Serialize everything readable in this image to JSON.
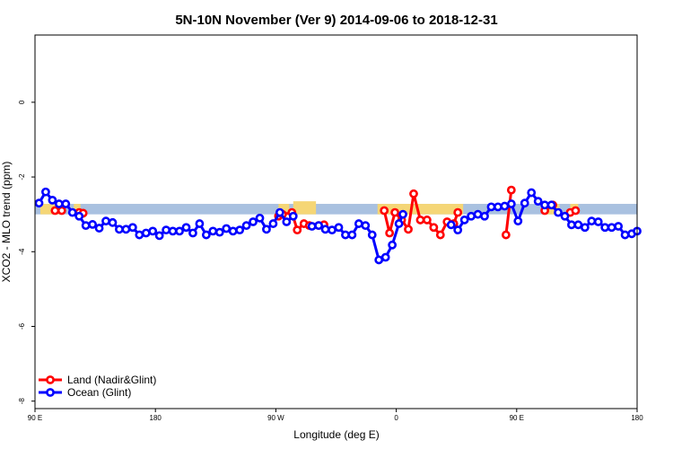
{
  "chart_data": {
    "type": "line",
    "title": "5N-10N November (Ver 9)   2014-09-06 to 2018-12-31",
    "xlabel": "Longitude (deg E)",
    "ylabel": "XCO2 - MLO trend (ppm)",
    "xlim": [
      90,
      540
    ],
    "ylim": [
      -8.2,
      1.8
    ],
    "x_ticks": [
      {
        "value": 90,
        "label": "90 E"
      },
      {
        "value": 180,
        "label": "180"
      },
      {
        "value": 270,
        "label": "90 W"
      },
      {
        "value": 360,
        "label": "0"
      },
      {
        "value": 450,
        "label": "90 E"
      },
      {
        "value": 540,
        "label": "180"
      }
    ],
    "y_ticks": [
      0,
      -2,
      -4,
      -6,
      -8
    ],
    "reference_band": {
      "color": "#a9c1e0",
      "y": [
        -3.0,
        -2.72
      ]
    },
    "highlight_bands": {
      "color": "#f5d676",
      "segments": [
        {
          "x": [
            94,
            109
          ],
          "y": [
            -3.0,
            -2.72
          ]
        },
        {
          "x": [
            119,
            124
          ],
          "y": [
            -3.0,
            -2.72
          ]
        },
        {
          "x": [
            272,
            280
          ],
          "y": [
            -3.0,
            -2.72
          ]
        },
        {
          "x": [
            283,
            300
          ],
          "y": [
            -3.0,
            -2.65
          ]
        },
        {
          "x": [
            346,
            410
          ],
          "y": [
            -3.0,
            -2.72
          ]
        },
        {
          "x": [
            470,
            482
          ],
          "y": [
            -3.0,
            -2.72
          ]
        },
        {
          "x": [
            490,
            496
          ],
          "y": [
            -3.0,
            -2.72
          ]
        }
      ]
    },
    "series": [
      {
        "name": "Land (Nadir&Glint)",
        "color": "#ff0000",
        "segments": [
          [
            [
              105,
              -2.9
            ],
            [
              110,
              -2.9
            ]
          ],
          [
            [
              123,
              -2.95
            ],
            [
              126,
              -2.97
            ]
          ],
          [
            [
              272,
              -3.05
            ],
            [
              275,
              -3.0
            ],
            [
              282,
              -2.95
            ],
            [
              286,
              -3.42
            ],
            [
              291,
              -3.25
            ],
            [
              295,
              -3.3
            ],
            [
              302,
              -3.3
            ],
            [
              306,
              -3.28
            ]
          ],
          [
            [
              351,
              -2.9
            ],
            [
              355,
              -3.5
            ],
            [
              359,
              -2.95
            ],
            [
              364,
              -3.15
            ],
            [
              369,
              -3.4
            ],
            [
              373,
              -2.45
            ],
            [
              378,
              -3.15
            ],
            [
              383,
              -3.15
            ],
            [
              388,
              -3.35
            ],
            [
              393,
              -3.55
            ],
            [
              398,
              -3.2
            ],
            [
              403,
              -3.25
            ],
            [
              406,
              -2.95
            ]
          ],
          [
            [
              442,
              -3.55
            ],
            [
              446,
              -2.35
            ]
          ],
          [
            [
              471,
              -2.9
            ],
            [
              477,
              -2.75
            ]
          ],
          [
            [
              490,
              -2.95
            ],
            [
              494,
              -2.9
            ]
          ]
        ]
      },
      {
        "name": "Ocean (Glint)",
        "color": "#0000ff",
        "segments": [
          [
            [
              93,
              -2.7
            ],
            [
              98,
              -2.4
            ],
            [
              103,
              -2.62
            ],
            [
              108,
              -2.72
            ],
            [
              113,
              -2.72
            ],
            [
              118,
              -2.95
            ],
            [
              123,
              -3.05
            ],
            [
              128,
              -3.3
            ],
            [
              133,
              -3.27
            ],
            [
              138,
              -3.37
            ],
            [
              143,
              -3.18
            ],
            [
              148,
              -3.22
            ],
            [
              153,
              -3.4
            ],
            [
              158,
              -3.4
            ],
            [
              163,
              -3.35
            ],
            [
              168,
              -3.55
            ],
            [
              173,
              -3.5
            ],
            [
              178,
              -3.45
            ],
            [
              183,
              -3.57
            ],
            [
              188,
              -3.42
            ],
            [
              193,
              -3.45
            ],
            [
              198,
              -3.45
            ],
            [
              203,
              -3.35
            ],
            [
              208,
              -3.5
            ],
            [
              213,
              -3.25
            ],
            [
              218,
              -3.55
            ],
            [
              223,
              -3.45
            ],
            [
              228,
              -3.48
            ],
            [
              233,
              -3.38
            ],
            [
              238,
              -3.45
            ],
            [
              243,
              -3.42
            ],
            [
              248,
              -3.3
            ],
            [
              253,
              -3.2
            ],
            [
              258,
              -3.1
            ],
            [
              263,
              -3.4
            ],
            [
              268,
              -3.25
            ],
            [
              273,
              -2.95
            ],
            [
              278,
              -3.2
            ],
            [
              283,
              -3.05
            ]
          ],
          [
            [
              297,
              -3.32
            ],
            [
              302,
              -3.3
            ],
            [
              307,
              -3.4
            ],
            [
              312,
              -3.42
            ],
            [
              317,
              -3.35
            ],
            [
              322,
              -3.55
            ],
            [
              327,
              -3.55
            ],
            [
              332,
              -3.25
            ],
            [
              337,
              -3.3
            ],
            [
              342,
              -3.55
            ],
            [
              347,
              -4.22
            ],
            [
              352,
              -4.15
            ],
            [
              357,
              -3.82
            ],
            [
              362,
              -3.25
            ],
            [
              365,
              -3.0
            ]
          ],
          [
            [
              401,
              -3.28
            ],
            [
              406,
              -3.42
            ],
            [
              411,
              -3.15
            ],
            [
              416,
              -3.05
            ],
            [
              421,
              -3.0
            ],
            [
              426,
              -3.05
            ],
            [
              431,
              -2.8
            ],
            [
              436,
              -2.8
            ],
            [
              441,
              -2.78
            ],
            [
              446,
              -2.72
            ],
            [
              451,
              -3.18
            ],
            [
              456,
              -2.7
            ],
            [
              461,
              -2.42
            ],
            [
              466,
              -2.65
            ],
            [
              471,
              -2.75
            ],
            [
              476,
              -2.75
            ],
            [
              481,
              -2.95
            ],
            [
              486,
              -3.05
            ],
            [
              491,
              -3.28
            ],
            [
              496,
              -3.28
            ],
            [
              501,
              -3.35
            ],
            [
              506,
              -3.18
            ],
            [
              511,
              -3.2
            ],
            [
              516,
              -3.35
            ],
            [
              521,
              -3.35
            ],
            [
              526,
              -3.32
            ],
            [
              531,
              -3.55
            ],
            [
              536,
              -3.52
            ],
            [
              540,
              -3.45
            ]
          ]
        ]
      }
    ],
    "legend_position": "bottom-left"
  }
}
